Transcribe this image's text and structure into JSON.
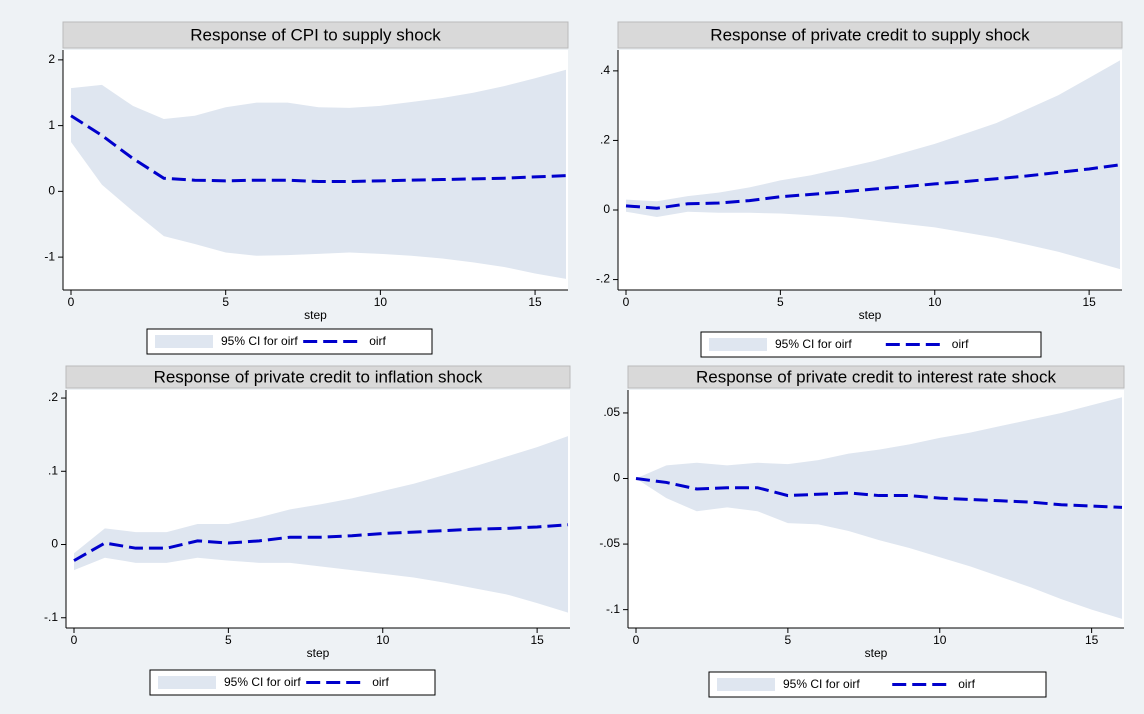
{
  "chart_data": [
    {
      "type": "line",
      "title": "Response of CPI to supply shock",
      "xlabel": "step",
      "x": [
        0,
        1,
        2,
        3,
        4,
        5,
        6,
        7,
        8,
        9,
        10,
        11,
        12,
        13,
        14,
        15,
        16
      ],
      "xlim": [
        0,
        16
      ],
      "xticks": [
        0,
        5,
        10,
        15
      ],
      "ylim": [
        -1.5,
        2.15
      ],
      "yticks": [
        -1,
        0,
        1,
        2
      ],
      "series": [
        {
          "name": "95% CI for oirf",
          "color": "#dfe6f0",
          "lower": [
            0.75,
            0.1,
            -0.3,
            -0.68,
            -0.8,
            -0.93,
            -0.98,
            -0.97,
            -0.95,
            -0.93,
            -0.95,
            -0.98,
            -1.02,
            -1.08,
            -1.15,
            -1.25,
            -1.33
          ],
          "upper": [
            1.57,
            1.62,
            1.3,
            1.1,
            1.15,
            1.28,
            1.35,
            1.35,
            1.28,
            1.27,
            1.3,
            1.36,
            1.42,
            1.5,
            1.6,
            1.72,
            1.85
          ]
        },
        {
          "name": "oirf",
          "color": "#0000cc",
          "values": [
            1.15,
            0.85,
            0.5,
            0.2,
            0.17,
            0.16,
            0.17,
            0.17,
            0.15,
            0.15,
            0.16,
            0.17,
            0.18,
            0.19,
            0.2,
            0.22,
            0.24
          ]
        }
      ]
    },
    {
      "type": "line",
      "title": "Response of private credit to supply shock",
      "xlabel": "step",
      "x": [
        0,
        1,
        2,
        3,
        4,
        5,
        6,
        7,
        8,
        9,
        10,
        11,
        12,
        13,
        14,
        15,
        16
      ],
      "xlim": [
        0,
        16
      ],
      "xticks": [
        0,
        5,
        10,
        15
      ],
      "ylim": [
        -0.23,
        0.46
      ],
      "yticks": [
        {
          "value": -0.2,
          "label": "-.2"
        },
        0,
        {
          "value": 0.2,
          "label": ".2"
        },
        {
          "value": 0.4,
          "label": ".4"
        }
      ],
      "series": [
        {
          "name": "95% CI for oirf",
          "color": "#dfe6f0",
          "lower": [
            -0.005,
            -0.02,
            -0.005,
            -0.008,
            -0.008,
            -0.01,
            -0.015,
            -0.02,
            -0.03,
            -0.04,
            -0.05,
            -0.065,
            -0.08,
            -0.1,
            -0.12,
            -0.145,
            -0.17
          ],
          "upper": [
            0.03,
            0.025,
            0.04,
            0.05,
            0.065,
            0.085,
            0.1,
            0.12,
            0.14,
            0.165,
            0.19,
            0.22,
            0.25,
            0.29,
            0.33,
            0.38,
            0.43
          ]
        },
        {
          "name": "oirf",
          "color": "#0000cc",
          "values": [
            0.012,
            0.005,
            0.018,
            0.02,
            0.027,
            0.038,
            0.045,
            0.052,
            0.06,
            0.067,
            0.075,
            0.082,
            0.09,
            0.098,
            0.108,
            0.118,
            0.13
          ]
        }
      ]
    },
    {
      "type": "line",
      "title": "Response of private credit to inflation shock",
      "xlabel": "step",
      "x": [
        0,
        1,
        2,
        3,
        4,
        5,
        6,
        7,
        8,
        9,
        10,
        11,
        12,
        13,
        14,
        15,
        16
      ],
      "xlim": [
        0,
        16
      ],
      "xticks": [
        0,
        5,
        10,
        15
      ],
      "ylim": [
        -0.114,
        0.211
      ],
      "yticks": [
        {
          "value": -0.1,
          "label": "-.1"
        },
        0,
        {
          "value": 0.1,
          "label": ".1"
        },
        {
          "value": 0.2,
          "label": ".2"
        }
      ],
      "series": [
        {
          "name": "95% CI for oirf",
          "color": "#dfe6f0",
          "lower": [
            -0.035,
            -0.018,
            -0.025,
            -0.025,
            -0.018,
            -0.022,
            -0.025,
            -0.025,
            -0.03,
            -0.035,
            -0.04,
            -0.045,
            -0.052,
            -0.06,
            -0.068,
            -0.08,
            -0.093
          ],
          "upper": [
            -0.012,
            0.022,
            0.017,
            0.017,
            0.028,
            0.028,
            0.037,
            0.048,
            0.055,
            0.063,
            0.073,
            0.083,
            0.095,
            0.107,
            0.12,
            0.133,
            0.148
          ]
        },
        {
          "name": "oirf",
          "color": "#0000cc",
          "values": [
            -0.022,
            0.002,
            -0.005,
            -0.005,
            0.005,
            0.002,
            0.005,
            0.01,
            0.01,
            0.012,
            0.015,
            0.017,
            0.019,
            0.021,
            0.022,
            0.024,
            0.027
          ]
        }
      ]
    },
    {
      "type": "line",
      "title": "Response of private credit to interest rate shock",
      "xlabel": "step",
      "x": [
        0,
        1,
        2,
        3,
        4,
        5,
        6,
        7,
        8,
        9,
        10,
        11,
        12,
        13,
        14,
        15,
        16
      ],
      "xlim": [
        0,
        16
      ],
      "xticks": [
        0,
        5,
        10,
        15
      ],
      "ylim": [
        -0.114,
        0.0675
      ],
      "yticks": [
        {
          "value": -0.1,
          "label": "-.1"
        },
        {
          "value": -0.05,
          "label": "-.05"
        },
        0,
        {
          "value": 0.05,
          "label": ".05"
        }
      ],
      "series": [
        {
          "name": "95% CI for oirf",
          "color": "#dfe6f0",
          "lower": [
            0,
            -0.015,
            -0.025,
            -0.022,
            -0.025,
            -0.034,
            -0.035,
            -0.04,
            -0.047,
            -0.053,
            -0.06,
            -0.067,
            -0.075,
            -0.083,
            -0.092,
            -0.1,
            -0.107
          ],
          "upper": [
            0,
            0.01,
            0.012,
            0.01,
            0.012,
            0.011,
            0.014,
            0.019,
            0.022,
            0.026,
            0.031,
            0.035,
            0.04,
            0.045,
            0.05,
            0.056,
            0.062
          ]
        },
        {
          "name": "oirf",
          "color": "#0000cc",
          "values": [
            0,
            -0.003,
            -0.008,
            -0.007,
            -0.007,
            -0.013,
            -0.012,
            -0.011,
            -0.013,
            -0.013,
            -0.015,
            -0.016,
            -0.017,
            -0.018,
            -0.02,
            -0.021,
            -0.022
          ]
        }
      ]
    }
  ]
}
